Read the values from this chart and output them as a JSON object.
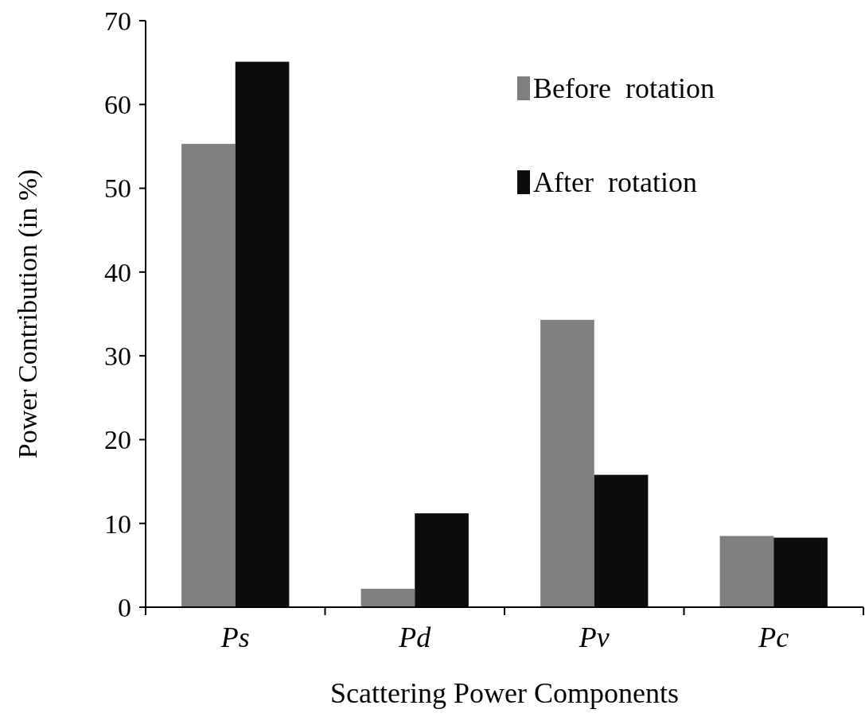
{
  "chart_data": {
    "type": "bar",
    "xlabel": "Scattering Power Components",
    "ylabel": "Power Contribution (in %)",
    "categories": [
      "Ps",
      "Pd",
      "Pv",
      "Pc"
    ],
    "series": [
      {
        "name": "Before  rotation",
        "color": "#808080",
        "values": [
          55.3,
          2.2,
          34.3,
          8.5
        ]
      },
      {
        "name": "After  rotation",
        "color": "#0d0d0d",
        "values": [
          65.1,
          11.2,
          15.8,
          8.3
        ]
      }
    ],
    "ylim": [
      0,
      70
    ],
    "yticks": [
      0,
      10,
      20,
      30,
      40,
      50,
      60,
      70
    ],
    "grid": false,
    "legend": "top right"
  }
}
